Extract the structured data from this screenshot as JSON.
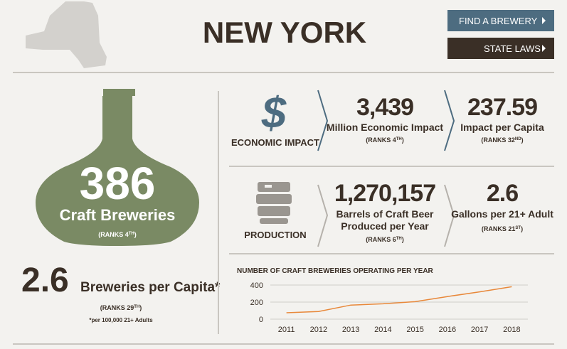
{
  "header": {
    "title": "NEW YORK",
    "buttons": [
      "FIND A BREWERY",
      "STATE LAWS"
    ]
  },
  "breweries": {
    "count": "386",
    "label": "Craft Breweries",
    "rank": [
      "(RANKS 4",
      "TH",
      ")"
    ]
  },
  "per_capita": {
    "value": "2.6",
    "label": "Breweries per Capita*",
    "rank": [
      "(RANKS 29",
      "TH",
      ")"
    ],
    "note": "*per 100,000 21+ Adults"
  },
  "economic_impact": {
    "heading": "ECONOMIC IMPACT",
    "total": {
      "value": "3,439",
      "label": "Million Economic Impact",
      "rank": [
        "(RANKS 4",
        "TH",
        ")"
      ]
    },
    "per_capita": {
      "value": "237.59",
      "label": "Impact per Capita",
      "rank": [
        "(RANKS 32",
        "ND",
        ")"
      ]
    }
  },
  "production": {
    "heading": "PRODUCTION",
    "total": {
      "value": "1,270,157",
      "label": [
        "Barrels of Craft Beer",
        "Produced per Year"
      ],
      "rank": [
        "(RANKS 6",
        "TH",
        ")"
      ]
    },
    "per_adult": {
      "value": "2.6",
      "label": "Gallons per 21+ Adult",
      "rank": [
        "(RANKS 21",
        "ST",
        ")"
      ]
    }
  },
  "chart": {
    "type": "line",
    "title": "NUMBER OF CRAFT BREWERIES OPERATING PER YEAR",
    "categories": [
      "2011",
      "2012",
      "2013",
      "2014",
      "2015",
      "2016",
      "2017",
      "2018"
    ],
    "values": [
      75,
      90,
      165,
      180,
      205,
      265,
      320,
      380
    ],
    "color": "#e8883a",
    "ylim": [
      0,
      400
    ],
    "yticks": [
      0,
      200,
      400
    ],
    "grid": true
  }
}
